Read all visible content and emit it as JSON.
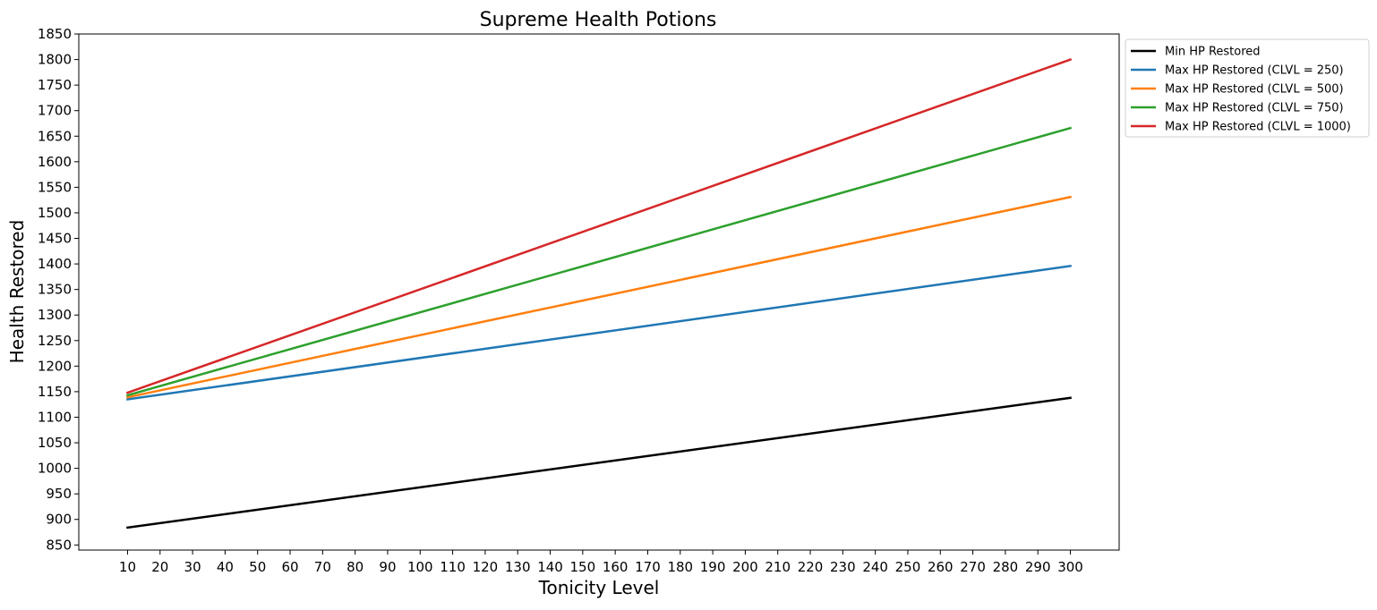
{
  "chart_data": {
    "type": "line",
    "title": "Supreme Health Potions",
    "xlabel": "Tonicity Level",
    "ylabel": "Health Restored",
    "x": [
      10,
      300
    ],
    "xticks": [
      10,
      20,
      30,
      40,
      50,
      60,
      70,
      80,
      90,
      100,
      110,
      120,
      130,
      140,
      150,
      160,
      170,
      180,
      190,
      200,
      210,
      220,
      230,
      240,
      250,
      260,
      270,
      280,
      290,
      300
    ],
    "yticks": [
      850,
      900,
      950,
      1000,
      1050,
      1100,
      1150,
      1200,
      1250,
      1300,
      1350,
      1400,
      1450,
      1500,
      1550,
      1600,
      1650,
      1700,
      1750,
      1800,
      1850
    ],
    "xlim": [
      -5,
      315
    ],
    "ylim": [
      840,
      1850
    ],
    "grid": false,
    "legend_position": "outside-top-right",
    "series": [
      {
        "name": "Min HP Restored",
        "color": "#000000",
        "values": [
          884,
          1138
        ]
      },
      {
        "name": "Max HP Restored (CLVL = 250)",
        "color": "#1f77b4",
        "values": [
          1135,
          1396
        ]
      },
      {
        "name": "Max HP Restored (CLVL = 500)",
        "color": "#ff7f0e",
        "values": [
          1139,
          1531
        ]
      },
      {
        "name": "Max HP Restored (CLVL = 750)",
        "color": "#2ca02c",
        "values": [
          1143,
          1666
        ]
      },
      {
        "name": "Max HP Restored (CLVL = 1000)",
        "color": "#d62728",
        "values": [
          1148,
          1800
        ]
      }
    ]
  }
}
